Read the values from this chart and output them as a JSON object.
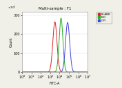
{
  "title": "Multi-sample : F1",
  "xlabel": "FITC-A",
  "ylabel": "Count",
  "background_color": "#f0f0e8",
  "plot_bg_color": "#ffffff",
  "legend_labels": [
    "BLANK",
    "ISO",
    "GPI"
  ],
  "legend_colors": [
    "#dd2222",
    "#22aa22",
    "#4444dd"
  ],
  "xlim_log": [
    0,
    7
  ],
  "ylim": [
    0,
    320
  ],
  "yticks": [
    0,
    100,
    200,
    300
  ],
  "curves": [
    {
      "peak_log": 3.5,
      "peak_y": 265,
      "sigma": 0.22,
      "color": "#dd2222"
    },
    {
      "peak_log": 4.15,
      "peak_y": 285,
      "sigma": 0.2,
      "color": "#22aa22"
    },
    {
      "peak_log": 4.85,
      "peak_y": 262,
      "sigma": 0.22,
      "color": "#4444dd"
    }
  ]
}
